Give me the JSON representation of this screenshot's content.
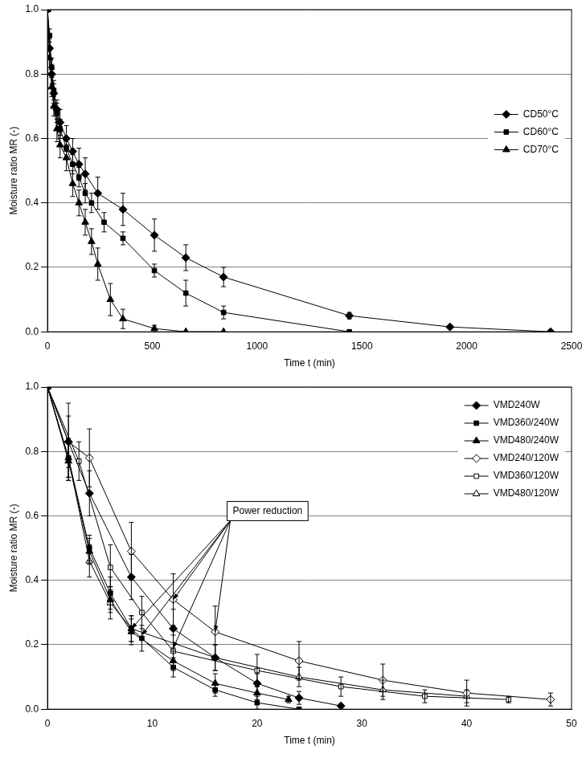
{
  "chart_data": [
    {
      "type": "line",
      "x_label": "Time t (min)",
      "y_label": "Moisture ratio MR (-)",
      "xlim": [
        0,
        2500
      ],
      "xticks": [
        0,
        500,
        1000,
        1500,
        2000,
        2500
      ],
      "ylim": [
        0,
        1
      ],
      "yticks": [
        {
          "value": 0,
          "label": "0.0"
        },
        0.2,
        0.4,
        0.6,
        0.8,
        {
          "value": 1,
          "label": "1.0"
        }
      ],
      "grid": "y",
      "legend": "right",
      "series": [
        {
          "name": "CD50°C",
          "color": "#000000",
          "marker": "diamond",
          "x": [
            0,
            10,
            20,
            30,
            45,
            60,
            90,
            120,
            150,
            180,
            240,
            360,
            510,
            660,
            840,
            1440,
            1920,
            2400
          ],
          "values": [
            1.0,
            0.88,
            0.8,
            0.74,
            0.69,
            0.65,
            0.6,
            0.56,
            0.52,
            0.49,
            0.43,
            0.38,
            0.3,
            0.23,
            0.17,
            0.05,
            0.015,
            0.0
          ],
          "errors": [
            0,
            0.03,
            0.03,
            0.03,
            0.03,
            0.04,
            0.04,
            0.04,
            0.05,
            0.05,
            0.05,
            0.05,
            0.05,
            0.04,
            0.03,
            0.01,
            0.005,
            0
          ]
        },
        {
          "name": "CD60°C",
          "color": "#000000",
          "marker": "square",
          "x": [
            0,
            10,
            20,
            30,
            45,
            60,
            90,
            120,
            150,
            180,
            210,
            270,
            360,
            510,
            660,
            840,
            1440
          ],
          "values": [
            1.0,
            0.92,
            0.82,
            0.75,
            0.68,
            0.63,
            0.57,
            0.52,
            0.48,
            0.43,
            0.4,
            0.34,
            0.29,
            0.19,
            0.12,
            0.06,
            0.0
          ],
          "errors": [
            0,
            0.02,
            0.03,
            0.03,
            0.03,
            0.03,
            0.03,
            0.03,
            0.03,
            0.03,
            0.03,
            0.03,
            0.02,
            0.02,
            0.04,
            0.02,
            0
          ]
        },
        {
          "name": "CD70°C",
          "color": "#000000",
          "marker": "triangle",
          "x": [
            0,
            10,
            20,
            30,
            45,
            60,
            90,
            120,
            150,
            180,
            210,
            240,
            300,
            360,
            510,
            660,
            840
          ],
          "values": [
            1.0,
            0.85,
            0.76,
            0.7,
            0.63,
            0.58,
            0.54,
            0.46,
            0.4,
            0.34,
            0.28,
            0.21,
            0.1,
            0.04,
            0.01,
            0.0,
            0.0
          ],
          "errors": [
            0,
            0.03,
            0.03,
            0.03,
            0.04,
            0.04,
            0.04,
            0.04,
            0.04,
            0.04,
            0.04,
            0.05,
            0.05,
            0.03,
            0.01,
            0,
            0
          ]
        }
      ]
    },
    {
      "type": "line",
      "x_label": "Time t (min)",
      "y_label": "Moisture ratio MR (-)",
      "xlim": [
        0,
        50
      ],
      "xticks": [
        0,
        10,
        20,
        30,
        40,
        50
      ],
      "ylim": [
        0,
        1
      ],
      "yticks": [
        {
          "value": 0,
          "label": "0.0"
        },
        0.2,
        0.4,
        0.6,
        0.8,
        {
          "value": 1,
          "label": "1.0"
        }
      ],
      "grid": "y",
      "legend": "upper right",
      "annotations": [
        {
          "text": "Power reduction",
          "x": 21,
          "y": 0.615,
          "arrows": [
            [
              8,
              0.25
            ],
            [
              9,
              0.23
            ],
            [
              12,
              0.19
            ],
            [
              12,
              0.34
            ],
            [
              16,
              0.24
            ]
          ]
        }
      ],
      "series": [
        {
          "name": "VMD240W",
          "color": "#000000",
          "marker": "diamond",
          "x": [
            0,
            2,
            4,
            8,
            12,
            16,
            20,
            24,
            28
          ],
          "values": [
            1.0,
            0.83,
            0.67,
            0.41,
            0.25,
            0.16,
            0.08,
            0.035,
            0.01
          ],
          "errors": [
            0,
            0.08,
            0.07,
            0.07,
            0.06,
            0.04,
            0.03,
            0.02,
            0.005
          ]
        },
        {
          "name": "VMD360/240W",
          "color": "#000000",
          "marker": "square",
          "x": [
            0,
            2,
            4,
            6,
            8,
            9,
            12,
            16,
            20,
            24
          ],
          "values": [
            1.0,
            0.78,
            0.5,
            0.36,
            0.25,
            0.22,
            0.13,
            0.06,
            0.02,
            0.0
          ],
          "errors": [
            0,
            0.06,
            0.04,
            0.05,
            0.04,
            0.04,
            0.03,
            0.02,
            0.02,
            0
          ]
        },
        {
          "name": "VMD480/240W",
          "color": "#000000",
          "marker": "triangle",
          "x": [
            0,
            2,
            4,
            6,
            8,
            12,
            16,
            20,
            23
          ],
          "values": [
            1.0,
            0.77,
            0.49,
            0.34,
            0.24,
            0.15,
            0.08,
            0.05,
            0.03
          ],
          "errors": [
            0,
            0.06,
            0.04,
            0.04,
            0.04,
            0.03,
            0.03,
            0.02,
            0.01
          ]
        },
        {
          "name": "VMD240/120W",
          "color": "#000000",
          "marker": "diamond_open",
          "x": [
            0,
            2,
            4,
            8,
            12,
            16,
            24,
            32,
            40,
            48
          ],
          "values": [
            1.0,
            0.83,
            0.78,
            0.49,
            0.34,
            0.24,
            0.15,
            0.09,
            0.05,
            0.03
          ],
          "errors": [
            0,
            0.12,
            0.09,
            0.09,
            0.08,
            0.08,
            0.06,
            0.05,
            0.04,
            0.02
          ]
        },
        {
          "name": "VMD360/120W",
          "color": "#000000",
          "marker": "square_open",
          "x": [
            0,
            3,
            6,
            9,
            12,
            20,
            28,
            36,
            44
          ],
          "values": [
            1.0,
            0.77,
            0.44,
            0.3,
            0.18,
            0.12,
            0.07,
            0.04,
            0.03
          ],
          "errors": [
            0,
            0.06,
            0.07,
            0.05,
            0.05,
            0.05,
            0.03,
            0.02,
            0.01
          ]
        },
        {
          "name": "VMD480/120W",
          "color": "#000000",
          "marker": "triangle_open",
          "x": [
            0,
            2,
            4,
            6,
            8,
            16,
            24,
            32,
            40
          ],
          "values": [
            1.0,
            0.78,
            0.46,
            0.33,
            0.25,
            0.16,
            0.1,
            0.06,
            0.04
          ],
          "errors": [
            0,
            0.06,
            0.05,
            0.05,
            0.04,
            0.04,
            0.03,
            0.03,
            0.02
          ]
        }
      ]
    }
  ]
}
